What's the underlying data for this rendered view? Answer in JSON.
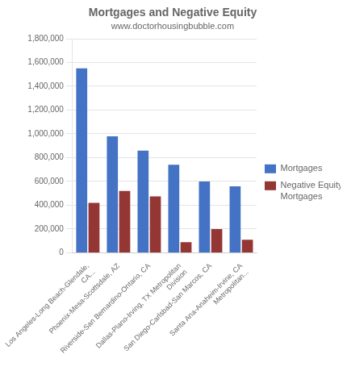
{
  "chart_data": {
    "type": "bar",
    "title": "Mortgages and Negative Equity",
    "subtitle": "www.doctorhousingbubble.com",
    "categories": [
      "Los Angeles-Long Beach-Glendale,\nCA...",
      "Phoenix-Mesa-Scottsdale, AZ",
      "Riverside-San Bernardino-Ontario, CA",
      "Dallas-Plano-Irving, TX Metropolitan\nDivision",
      "San Diego-Carlsbad-San Marcos, CA",
      "Santa Ana-Anaheim-Irvine, CA\nMetropolitan..."
    ],
    "series": [
      {
        "name": "Mortgages",
        "color": "#4472C4",
        "values": [
          1550000,
          980000,
          860000,
          740000,
          600000,
          560000
        ]
      },
      {
        "name": "Negative Equity\nMortgages",
        "color": "#943634",
        "values": [
          420000,
          520000,
          475000,
          90000,
          200000,
          110000
        ]
      }
    ],
    "ylim": [
      0,
      1800000
    ],
    "yticks": [
      0,
      {
        "value": 200000,
        "label": "200,000"
      },
      {
        "value": 400000,
        "label": "400,000"
      },
      {
        "value": 600000,
        "label": "600,000"
      },
      {
        "value": 800000,
        "label": "800,000"
      },
      {
        "value": 1000000,
        "label": "1,000,000"
      },
      {
        "value": 1200000,
        "label": "1,200,000"
      },
      {
        "value": 1400000,
        "label": "1,400,000"
      },
      {
        "value": 1600000,
        "label": "1,600,000"
      },
      {
        "value": 1800000,
        "label": "1,800,000"
      }
    ],
    "grid": true,
    "legend": "right"
  }
}
